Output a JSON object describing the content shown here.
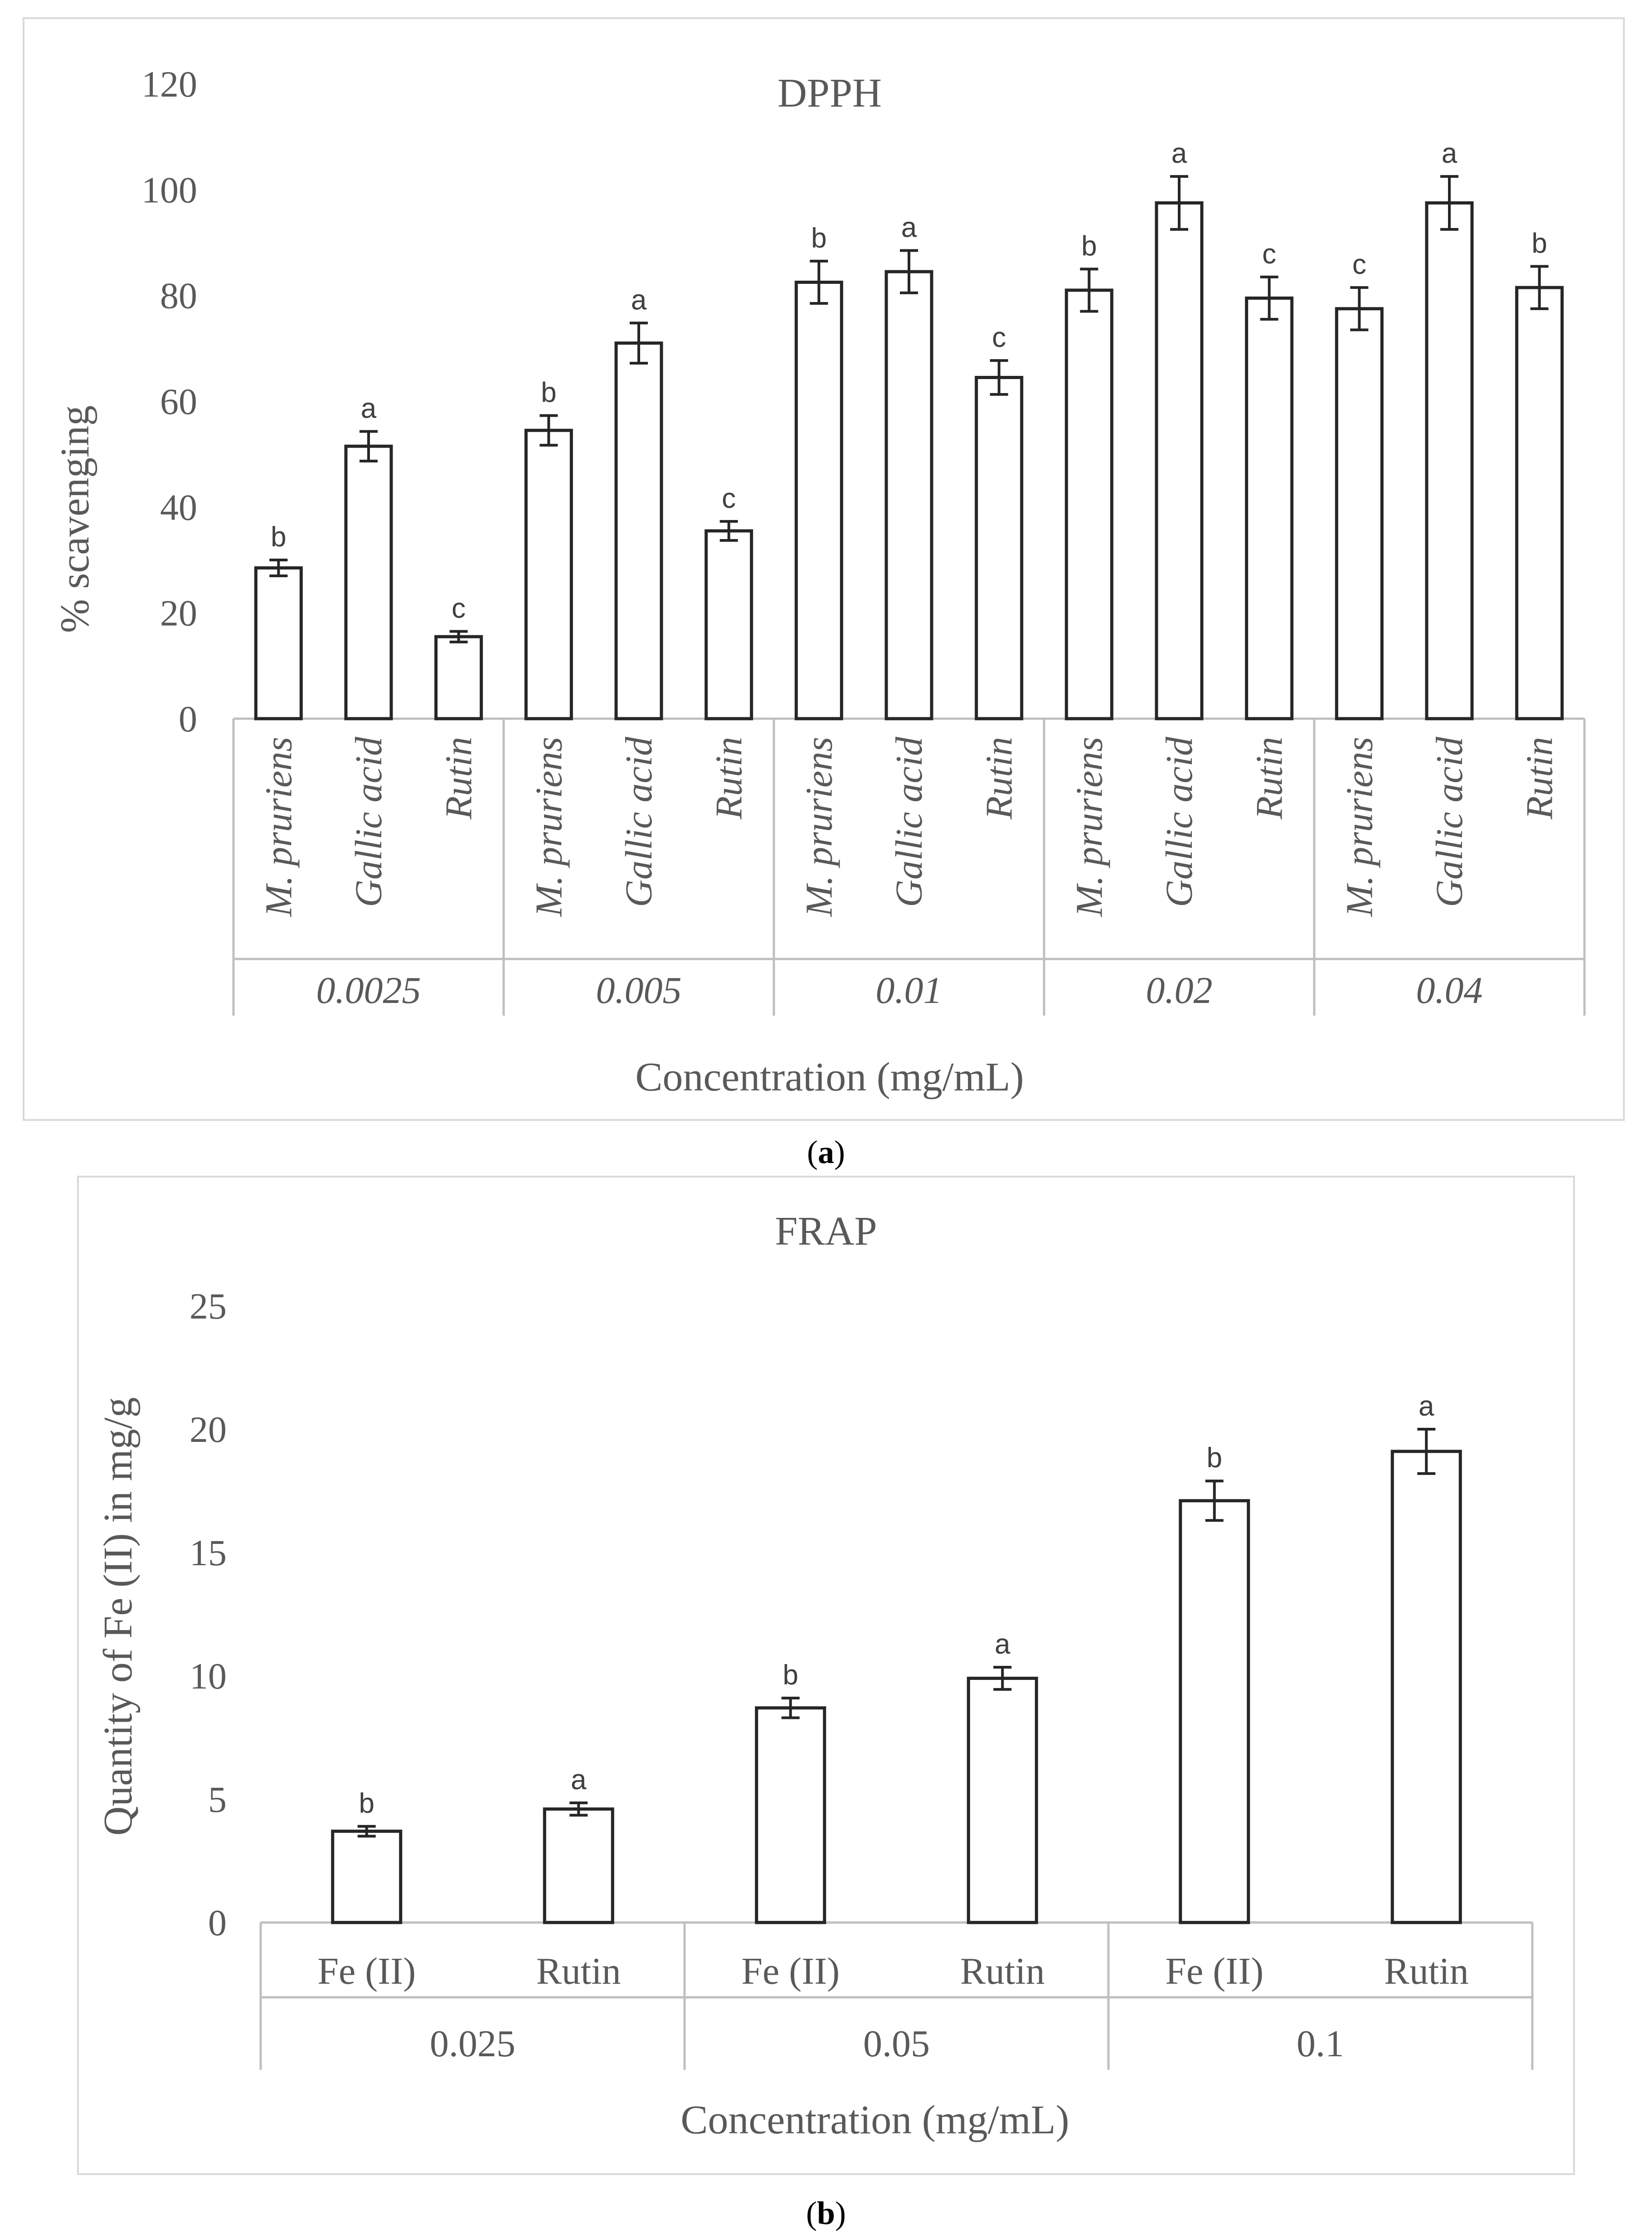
{
  "chart_data": [
    {
      "type": "bar",
      "title": "DPPH",
      "ylabel": "% scavenging",
      "xlabel": "Concentration (mg/mL)",
      "ylim": [
        0,
        120
      ],
      "yticks": [
        0,
        20,
        40,
        60,
        80,
        100,
        120
      ],
      "groups": [
        "0.0025",
        "0.005",
        "0.01",
        "0.02",
        "0.04"
      ],
      "categories": [
        "M. pruriens",
        "Gallic acid",
        "Rutin"
      ],
      "values": [
        [
          28.5,
          51.5,
          15.5
        ],
        [
          54.5,
          71,
          35.5
        ],
        [
          82.5,
          84.5,
          64.5
        ],
        [
          81,
          97.5,
          79.5
        ],
        [
          77.5,
          97.5,
          81.5
        ]
      ],
      "errors": [
        [
          1.5,
          2.8,
          1.0
        ],
        [
          2.8,
          3.8,
          1.8
        ],
        [
          4.0,
          4.0,
          3.2
        ],
        [
          4.0,
          5.0,
          4.0
        ],
        [
          4.0,
          5.0,
          4.0
        ]
      ],
      "significance": [
        [
          "b",
          "a",
          "c"
        ],
        [
          "b",
          "a",
          "c"
        ],
        [
          "b",
          "a",
          "c"
        ],
        [
          "b",
          "a",
          "c"
        ],
        [
          "c",
          "a",
          "b"
        ]
      ],
      "caption_letter": "a"
    },
    {
      "type": "bar",
      "title": "FRAP",
      "ylabel": "Quantity of Fe (II) in mg/g",
      "xlabel": "Concentration (mg/mL)",
      "ylim": [
        0,
        25
      ],
      "yticks": [
        0,
        5,
        10,
        15,
        20,
        25
      ],
      "groups": [
        "0.025",
        "0.05",
        "0.1"
      ],
      "categories": [
        "Fe (II)",
        "Rutin"
      ],
      "values": [
        [
          3.7,
          4.6
        ],
        [
          8.7,
          9.9
        ],
        [
          17.1,
          19.1
        ]
      ],
      "errors": [
        [
          0.2,
          0.25
        ],
        [
          0.4,
          0.45
        ],
        [
          0.8,
          0.9
        ]
      ],
      "significance": [
        [
          "b",
          "a"
        ],
        [
          "b",
          "a"
        ],
        [
          "b",
          "a"
        ]
      ],
      "caption_letter": "b"
    }
  ]
}
